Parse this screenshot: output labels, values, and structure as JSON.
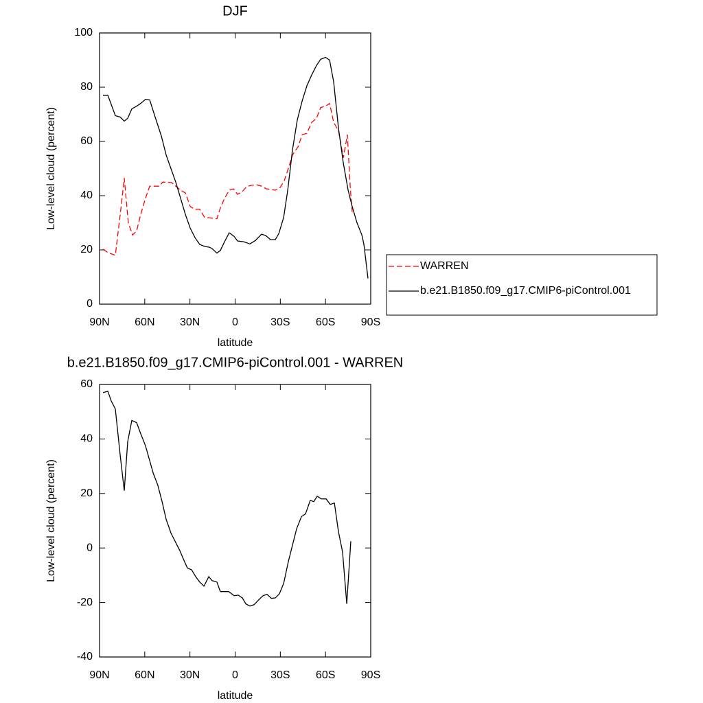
{
  "chart_data": [
    {
      "type": "line",
      "title": "DJF",
      "xlabel": "latitude",
      "ylabel": "Low-level cloud (percent)",
      "xlim": [
        90,
        -90
      ],
      "ylim": [
        0,
        100
      ],
      "xticks": [
        {
          "value": 90,
          "label": "90N"
        },
        {
          "value": 60,
          "label": "60N"
        },
        {
          "value": 30,
          "label": "30N"
        },
        0,
        {
          "value": -30,
          "label": "30S"
        },
        {
          "value": -60,
          "label": "60S"
        },
        {
          "value": -90,
          "label": "90S"
        }
      ],
      "yticks": [
        0,
        20,
        40,
        60,
        80,
        100
      ],
      "legend": "outside-right",
      "series": [
        {
          "name": "WARREN",
          "color": "#ff0000",
          "dashed": true,
          "x": [
            87.7,
            84.5,
            79.5,
            76.3,
            73.6,
            70.9,
            68.1,
            65.4,
            62.7,
            59.5,
            56.7,
            53.1,
            50.3,
            48.1,
            45.3,
            42.1,
            39.4,
            36.2,
            33,
            29.8,
            26.6,
            23.5,
            20.3,
            17.1,
            12.1,
            9.8,
            7,
            3.9,
            1.1,
            -1.6,
            -4.8,
            -7.5,
            -10.7,
            -14.4,
            -17.6,
            -20.8,
            -23.5,
            -26.7,
            -29.9,
            -32.6,
            -35.3,
            -38.1,
            -41.7,
            -44.5,
            -47.6,
            -50.8,
            -54,
            -56.8,
            -60,
            -62.7,
            -65.4,
            -68.6,
            -71.8,
            -74.5,
            -76.4,
            -77.7
          ],
          "values": [
            20.3,
            19,
            18,
            33,
            46.5,
            30,
            25.5,
            27,
            33,
            39,
            43.5,
            43.5,
            43.5,
            45,
            45,
            44.8,
            43.5,
            42,
            41,
            36,
            35,
            35,
            32,
            31.8,
            31.5,
            35.5,
            39,
            42,
            42.5,
            40.5,
            41.5,
            43.3,
            43.8,
            44,
            43.5,
            42.5,
            42.3,
            42,
            43,
            45.5,
            50,
            55,
            58,
            62.5,
            63,
            67,
            68.5,
            72.5,
            73,
            74,
            67,
            64,
            54,
            62.5,
            43,
            34
          ]
        },
        {
          "name": "b.e21.B1850.f09_g17.CMIP6-piControl.001",
          "color": "#000000",
          "dashed": false,
          "x": [
            87.7,
            84.5,
            79.5,
            76.3,
            73.6,
            71.3,
            68.6,
            65.4,
            62.7,
            59.5,
            56.7,
            53.1,
            49,
            45.8,
            42.6,
            39.4,
            36.2,
            33,
            29.8,
            26.6,
            23.5,
            20.3,
            17.1,
            15.3,
            12.1,
            9.8,
            7,
            3.9,
            0.7,
            -1.6,
            -5.7,
            -9.8,
            -13.5,
            -17.6,
            -20.3,
            -23.5,
            -26.7,
            -29,
            -32.2,
            -34.9,
            -38.1,
            -41.3,
            -44.5,
            -47.6,
            -50.8,
            -54,
            -56.8,
            -60,
            -62.7,
            -65.4,
            -68.6,
            -71.8,
            -75,
            -77.7,
            -80.9,
            -84.1,
            -85.5,
            -88.2
          ],
          "values": [
            77,
            77,
            69.5,
            69,
            67.5,
            68.5,
            72,
            73,
            74,
            75.5,
            75.3,
            69,
            62,
            55,
            50,
            45,
            39,
            33,
            28,
            24.5,
            22,
            21.3,
            21,
            20.5,
            18.8,
            19.8,
            23,
            26.3,
            25,
            23.3,
            23,
            22.2,
            23.5,
            25.8,
            25.3,
            23.8,
            23.8,
            26,
            32,
            42,
            57,
            68,
            75,
            80.5,
            84.5,
            88,
            90.3,
            91,
            90,
            82,
            65,
            52,
            42,
            36,
            30,
            25.5,
            22,
            9.5
          ]
        }
      ]
    },
    {
      "type": "line",
      "title": "b.e21.B1850.f09_g17.CMIP6-piControl.001 - WARREN",
      "xlabel": "latitude",
      "ylabel": "Low-level cloud (percent)",
      "xlim": [
        90,
        -90
      ],
      "ylim": [
        -40,
        60
      ],
      "xticks": [
        {
          "value": 90,
          "label": "90N"
        },
        {
          "value": 60,
          "label": "60N"
        },
        {
          "value": 30,
          "label": "30N"
        },
        0,
        {
          "value": -30,
          "label": "30S"
        },
        {
          "value": -60,
          "label": "60S"
        },
        {
          "value": -90,
          "label": "90S"
        }
      ],
      "yticks": [
        -40,
        -20,
        0,
        20,
        40,
        60
      ],
      "series": [
        {
          "color": "#000000",
          "dashed": false,
          "x": [
            87.7,
            84.5,
            82.3,
            79.5,
            76.3,
            73.6,
            71.3,
            68.6,
            65.4,
            62.7,
            59.5,
            56.7,
            54.4,
            51.3,
            48.5,
            45.8,
            42.6,
            39.4,
            36.7,
            34,
            31.7,
            28.9,
            26.2,
            23.5,
            20.7,
            17.5,
            15.3,
            12.1,
            9.8,
            4.3,
            0.7,
            -2.1,
            -4.8,
            -7.1,
            -9.8,
            -12.6,
            -15.7,
            -18.5,
            -21.2,
            -24,
            -26.7,
            -29.4,
            -32.2,
            -35.3,
            -38.5,
            -40.8,
            -44,
            -46.7,
            -49.9,
            -52.2,
            -54.5,
            -57.2,
            -60.4,
            -63.1,
            -65.9,
            -68.6,
            -71.3,
            -74.1,
            -76.8
          ],
          "values": [
            57,
            57.5,
            54,
            51,
            34,
            21,
            39,
            46.8,
            46,
            42,
            37.5,
            32,
            27.5,
            23,
            17,
            10.5,
            5.5,
            2,
            -1,
            -4.5,
            -7.3,
            -8,
            -10.5,
            -12.5,
            -14,
            -10.5,
            -12,
            -12.5,
            -16,
            -16,
            -17.5,
            -17.3,
            -18.3,
            -20.5,
            -21.3,
            -20.8,
            -19,
            -17.5,
            -17,
            -18.5,
            -18.3,
            -16.8,
            -13,
            -5,
            2,
            7,
            11.5,
            12.5,
            17.5,
            17,
            19,
            18,
            18,
            16,
            16.5,
            6,
            -1.5,
            -20.5,
            2.5
          ]
        }
      ]
    }
  ]
}
